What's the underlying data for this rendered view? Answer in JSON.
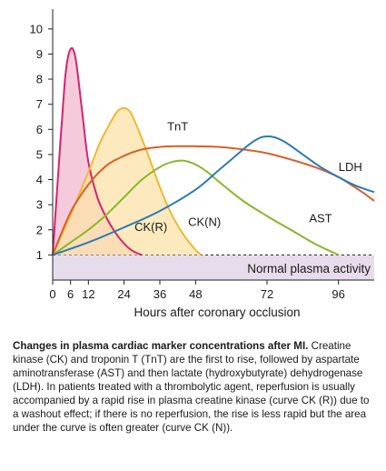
{
  "chart_data": {
    "type": "line",
    "xlabel": "Hours after coronary occlusion",
    "ylabel": "",
    "xlim": [
      0,
      108
    ],
    "ylim": [
      0,
      10.5
    ],
    "x_ticks": [
      0,
      6,
      12,
      24,
      36,
      48,
      72,
      96
    ],
    "y_ticks": [
      1,
      2,
      3,
      4,
      5,
      6,
      7,
      8,
      9,
      10
    ],
    "baseline": 1,
    "baseline_label": "Normal plasma activity",
    "series": [
      {
        "name": "CK(R)",
        "color": "#d4246f",
        "fill": "#f2b8cf",
        "x": [
          0,
          2,
          4,
          5,
          6,
          7,
          8,
          10,
          12,
          15,
          18,
          21,
          24,
          27,
          30
        ],
        "y": [
          1,
          4.5,
          7.8,
          8.8,
          9.2,
          9.15,
          8.6,
          6.6,
          4.7,
          3.3,
          2.5,
          1.9,
          1.45,
          1.15,
          1.0
        ]
      },
      {
        "name": "CK(N)",
        "color": "#f2b733",
        "fill": "#fbe3a8",
        "x": [
          0,
          6,
          12,
          16,
          20,
          22,
          24,
          26,
          28,
          32,
          36,
          40,
          44,
          48,
          50
        ],
        "y": [
          1,
          2.6,
          4.3,
          5.5,
          6.4,
          6.75,
          6.85,
          6.7,
          6.2,
          5.0,
          3.7,
          2.6,
          1.8,
          1.2,
          1.0
        ]
      },
      {
        "name": "TnT",
        "color": "#d9602a",
        "x": [
          0,
          6,
          12,
          18,
          24,
          30,
          36,
          42,
          48,
          56,
          64,
          72,
          80,
          88,
          96,
          104,
          108
        ],
        "y": [
          1,
          2.7,
          3.8,
          4.55,
          4.95,
          5.2,
          5.3,
          5.33,
          5.33,
          5.3,
          5.2,
          5.05,
          4.8,
          4.5,
          4.1,
          3.5,
          3.15
        ]
      },
      {
        "name": "AST",
        "color": "#8ab62e",
        "x": [
          0,
          6,
          12,
          18,
          24,
          30,
          36,
          40,
          44,
          48,
          52,
          56,
          64,
          72,
          80,
          88,
          96
        ],
        "y": [
          1,
          1.5,
          2.0,
          2.6,
          3.3,
          4.0,
          4.5,
          4.7,
          4.75,
          4.6,
          4.3,
          3.9,
          3.15,
          2.55,
          2.0,
          1.45,
          1.0
        ]
      },
      {
        "name": "LDH",
        "color": "#2a7ab8",
        "x": [
          0,
          12,
          24,
          36,
          48,
          56,
          62,
          66,
          70,
          74,
          78,
          84,
          90,
          96,
          102,
          108
        ],
        "y": [
          1,
          1.5,
          2.1,
          2.75,
          3.6,
          4.4,
          5.0,
          5.4,
          5.68,
          5.7,
          5.5,
          5.0,
          4.5,
          4.1,
          3.75,
          3.5
        ]
      }
    ],
    "annotations": [
      {
        "text": "TnT",
        "x": 42,
        "y": 5.95
      },
      {
        "text": "LDH",
        "x": 100,
        "y": 4.35
      },
      {
        "text": "AST",
        "x": 90,
        "y": 2.3
      },
      {
        "text": "CK(R)",
        "x": 33,
        "y": 1.95
      },
      {
        "text": "CK(N)",
        "x": 51,
        "y": 2.15
      }
    ]
  },
  "caption": {
    "title": "Changes in plasma cardiac marker concentrations after MI.",
    "body": "Creatine kinase (CK) and troponin T (TnT) are the first to rise, followed by aspartate aminotransferase (AST) and then lactate (hydroxybutyrate) dehydrogenase (LDH). In patients treated with a thrombolytic agent, reperfusion is usually accompanied by a rapid rise in plasma creatine kinase (curve CK (R)) due to a washout effect; if there is no reperfusion, the rise is less rapid but the area under the curve is often greater (curve CK (N))."
  }
}
